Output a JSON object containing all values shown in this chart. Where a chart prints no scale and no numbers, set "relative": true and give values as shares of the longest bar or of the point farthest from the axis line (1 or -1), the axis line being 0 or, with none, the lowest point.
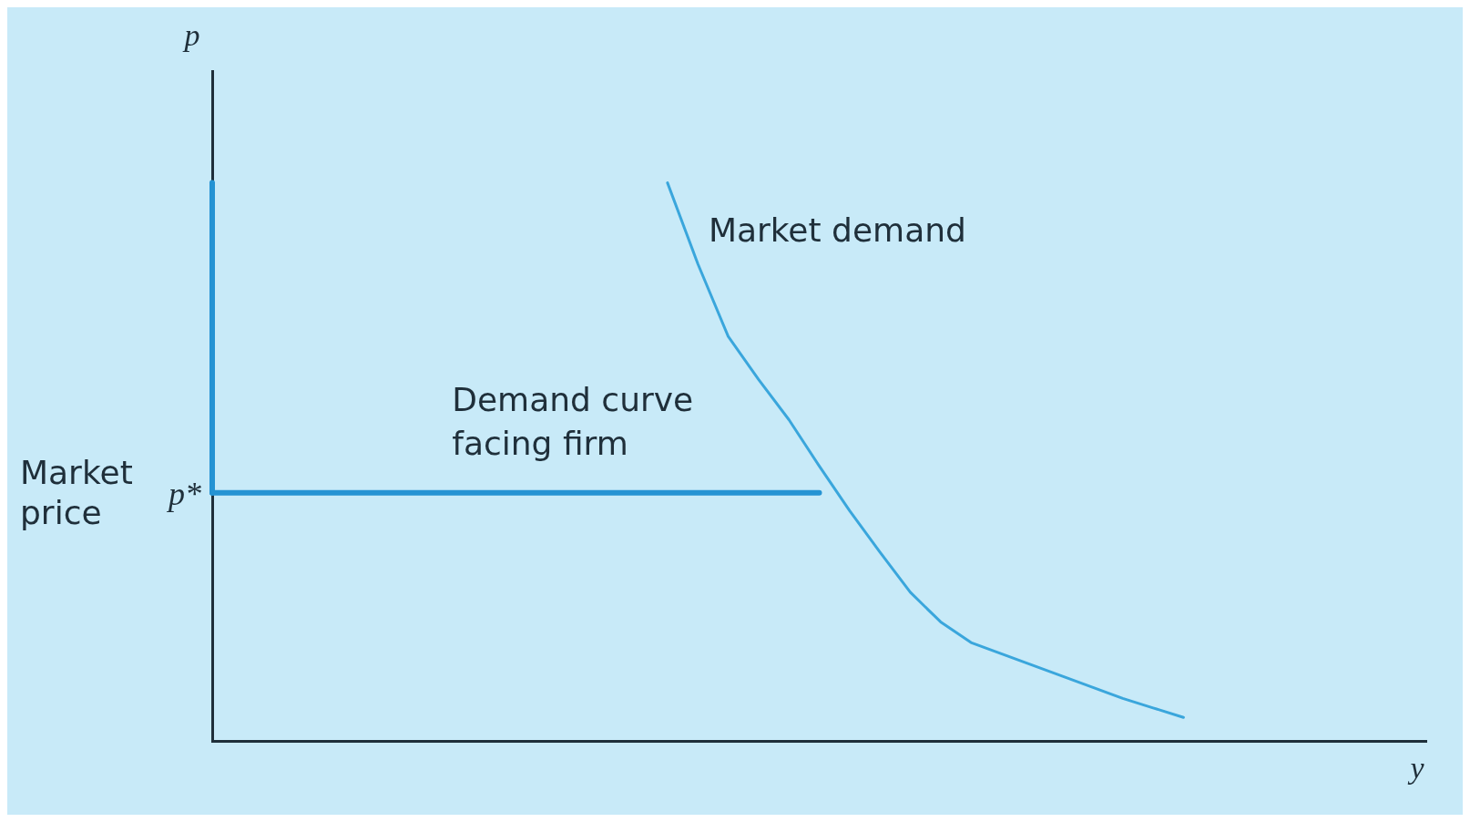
{
  "chart_data": {
    "type": "line",
    "relative": true,
    "xlabel": "y",
    "ylabel": "p",
    "legend": false,
    "grid": false,
    "marker": "none",
    "categories": [
      null,
      null,
      null,
      null,
      null,
      null,
      null,
      null,
      null,
      null,
      null,
      null,
      null,
      null,
      null,
      null,
      null,
      null,
      null,
      null,
      null,
      null,
      null,
      null,
      null,
      null,
      null,
      null,
      null,
      null,
      null,
      null,
      null,
      null,
      null,
      null,
      null,
      null,
      null,
      null,
      null
    ],
    "series": [
      {
        "name": "Market demand",
        "color": "#3aa6dc",
        "values": [
          null,
          null,
          null,
          null,
          null,
          null,
          null,
          null,
          null,
          null,
          null,
          null,
          null,
          null,
          null,
          1,
          0.855,
          0.725,
          0.648,
          0.576,
          0.493,
          0.413,
          0.339,
          0.267,
          0.214,
          0.177,
          0.157,
          0.137,
          0.117,
          0.097,
          0.077,
          0.06,
          0.043,
          null,
          null,
          null,
          null,
          null,
          null,
          null,
          null
        ]
      },
      {
        "name": "Demand curve facing firm",
        "color": "#2593d3",
        "values": [
          0.445,
          0.445,
          0.445,
          0.445,
          0.445,
          0.445,
          0.445,
          0.445,
          0.445,
          0.445,
          0.445,
          0.445,
          0.445,
          0.445,
          0.445,
          0.445,
          0.445,
          0.445,
          0.445,
          0.445,
          0.445,
          null,
          null,
          null,
          null,
          null,
          null,
          null,
          null,
          null,
          null,
          null,
          null,
          null,
          null,
          null,
          null,
          null,
          null,
          null,
          null
        ]
      }
    ],
    "annotations": [
      "p*",
      "Market price"
    ]
  }
}
